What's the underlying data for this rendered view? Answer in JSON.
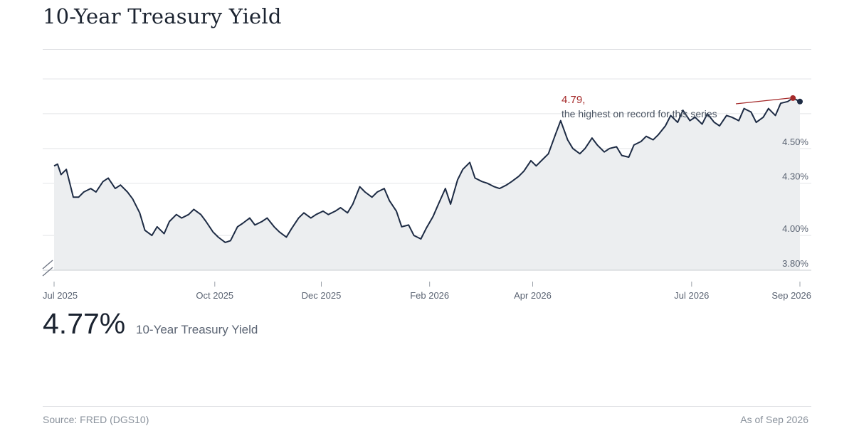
{
  "title": "10-Year Treasury Yield",
  "current": {
    "value": "4.77%",
    "label": "10-Year Treasury Yield"
  },
  "footer": {
    "source": "Source: FRED (DGS10)",
    "as_of": "As of Sep 2026"
  },
  "annotation": {
    "value": "4.79,",
    "text": "the highest on record for this series"
  },
  "colors": {
    "line": "#1d2b44",
    "area": "#eceef0",
    "highlight": "#a52a2a",
    "grid": "#e3e5e8",
    "axis_text": "#5b6473"
  },
  "chart_data": {
    "type": "area",
    "x_range": [
      "2025-07-01",
      "2026-09-01"
    ],
    "ylim": [
      3.8,
      4.9
    ],
    "y_axis_break": true,
    "grid": true,
    "y_ticks": [
      {
        "value": 4.5,
        "label": "4.50%"
      },
      {
        "value": 4.3,
        "label": "4.30%"
      },
      {
        "value": 4.0,
        "label": "4.00%"
      },
      {
        "value": 3.8,
        "label": "3.80%"
      }
    ],
    "x_ticks": [
      {
        "date": "2025-07-01",
        "label": "Jul 2025"
      },
      {
        "date": "2025-10-01",
        "label": "Oct 2025"
      },
      {
        "date": "2025-12-01",
        "label": "Dec 2025"
      },
      {
        "date": "2026-02-01",
        "label": "Feb 2026"
      },
      {
        "date": "2026-04-01",
        "label": "Apr 2026"
      },
      {
        "date": "2026-07-01",
        "label": "Jul 2026"
      },
      {
        "date": "2026-09-01",
        "label": "Sep 2026"
      }
    ],
    "series": [
      {
        "x": [
          "2025-07-01",
          "2025-07-03",
          "2025-07-05",
          "2025-07-08",
          "2025-07-12",
          "2025-07-15",
          "2025-07-18",
          "2025-07-22",
          "2025-07-25",
          "2025-07-29",
          "2025-08-01",
          "2025-08-05",
          "2025-08-08",
          "2025-08-12",
          "2025-08-15",
          "2025-08-19",
          "2025-08-22",
          "2025-08-26",
          "2025-08-29",
          "2025-09-02",
          "2025-09-05",
          "2025-09-09",
          "2025-09-12",
          "2025-09-16",
          "2025-09-19",
          "2025-09-23",
          "2025-09-26",
          "2025-09-30",
          "2025-10-03",
          "2025-10-07",
          "2025-10-10",
          "2025-10-14",
          "2025-10-17",
          "2025-10-21",
          "2025-10-24",
          "2025-10-28",
          "2025-10-31",
          "2025-11-04",
          "2025-11-07",
          "2025-11-11",
          "2025-11-14",
          "2025-11-18",
          "2025-11-21",
          "2025-11-25",
          "2025-11-28",
          "2025-12-02",
          "2025-12-05",
          "2025-12-09",
          "2025-12-12",
          "2025-12-16",
          "2025-12-19",
          "2025-12-23",
          "2025-12-26",
          "2025-12-30",
          "2026-01-02",
          "2026-01-06",
          "2026-01-09",
          "2026-01-13",
          "2026-01-16",
          "2026-01-20",
          "2026-01-23",
          "2026-01-27",
          "2026-01-30",
          "2026-02-03",
          "2026-02-06",
          "2026-02-10",
          "2026-02-13",
          "2026-02-17",
          "2026-02-20",
          "2026-02-24",
          "2026-02-27",
          "2026-03-03",
          "2026-03-06",
          "2026-03-10",
          "2026-03-13",
          "2026-03-17",
          "2026-03-20",
          "2026-03-24",
          "2026-03-27",
          "2026-03-31",
          "2026-04-03",
          "2026-04-07",
          "2026-04-10",
          "2026-04-14",
          "2026-04-17",
          "2026-04-21",
          "2026-04-24",
          "2026-04-28",
          "2026-05-01",
          "2026-05-05",
          "2026-05-08",
          "2026-05-12",
          "2026-05-15",
          "2026-05-19",
          "2026-05-22",
          "2026-05-26",
          "2026-05-29",
          "2026-06-02",
          "2026-06-05",
          "2026-06-09",
          "2026-06-12",
          "2026-06-16",
          "2026-06-19",
          "2026-06-23",
          "2026-06-26",
          "2026-06-30",
          "2026-07-03",
          "2026-07-07",
          "2026-07-10",
          "2026-07-14",
          "2026-07-17",
          "2026-07-21",
          "2026-07-24",
          "2026-07-28",
          "2026-07-31",
          "2026-08-04",
          "2026-08-07",
          "2026-08-11",
          "2026-08-14",
          "2026-08-18",
          "2026-08-21",
          "2026-08-25",
          "2026-08-28",
          "2026-09-01"
        ],
        "y": [
          4.4,
          4.41,
          4.35,
          4.38,
          4.22,
          4.22,
          4.25,
          4.27,
          4.25,
          4.31,
          4.33,
          4.27,
          4.29,
          4.25,
          4.21,
          4.13,
          4.03,
          4.0,
          4.05,
          4.01,
          4.08,
          4.12,
          4.1,
          4.12,
          4.15,
          4.12,
          4.08,
          4.02,
          3.99,
          3.96,
          3.97,
          4.05,
          4.07,
          4.1,
          4.06,
          4.08,
          4.1,
          4.05,
          4.02,
          3.99,
          4.04,
          4.1,
          4.13,
          4.1,
          4.12,
          4.14,
          4.12,
          4.14,
          4.16,
          4.13,
          4.18,
          4.28,
          4.25,
          4.22,
          4.25,
          4.27,
          4.2,
          4.14,
          4.05,
          4.06,
          4.0,
          3.98,
          4.04,
          4.11,
          4.18,
          4.27,
          4.18,
          4.32,
          4.38,
          4.42,
          4.33,
          4.31,
          4.3,
          4.28,
          4.27,
          4.29,
          4.31,
          4.34,
          4.37,
          4.43,
          4.4,
          4.44,
          4.47,
          4.58,
          4.66,
          4.55,
          4.5,
          4.47,
          4.5,
          4.56,
          4.52,
          4.48,
          4.5,
          4.51,
          4.46,
          4.45,
          4.52,
          4.54,
          4.57,
          4.55,
          4.58,
          4.63,
          4.69,
          4.65,
          4.72,
          4.66,
          4.68,
          4.64,
          4.7,
          4.65,
          4.63,
          4.69,
          4.68,
          4.66,
          4.73,
          4.71,
          4.65,
          4.68,
          4.73,
          4.69,
          4.76,
          4.77,
          4.79,
          4.77
        ]
      }
    ],
    "highlight": {
      "x": "2026-08-28",
      "y": 4.79
    },
    "last": {
      "x": "2026-09-01",
      "y": 4.77
    }
  }
}
